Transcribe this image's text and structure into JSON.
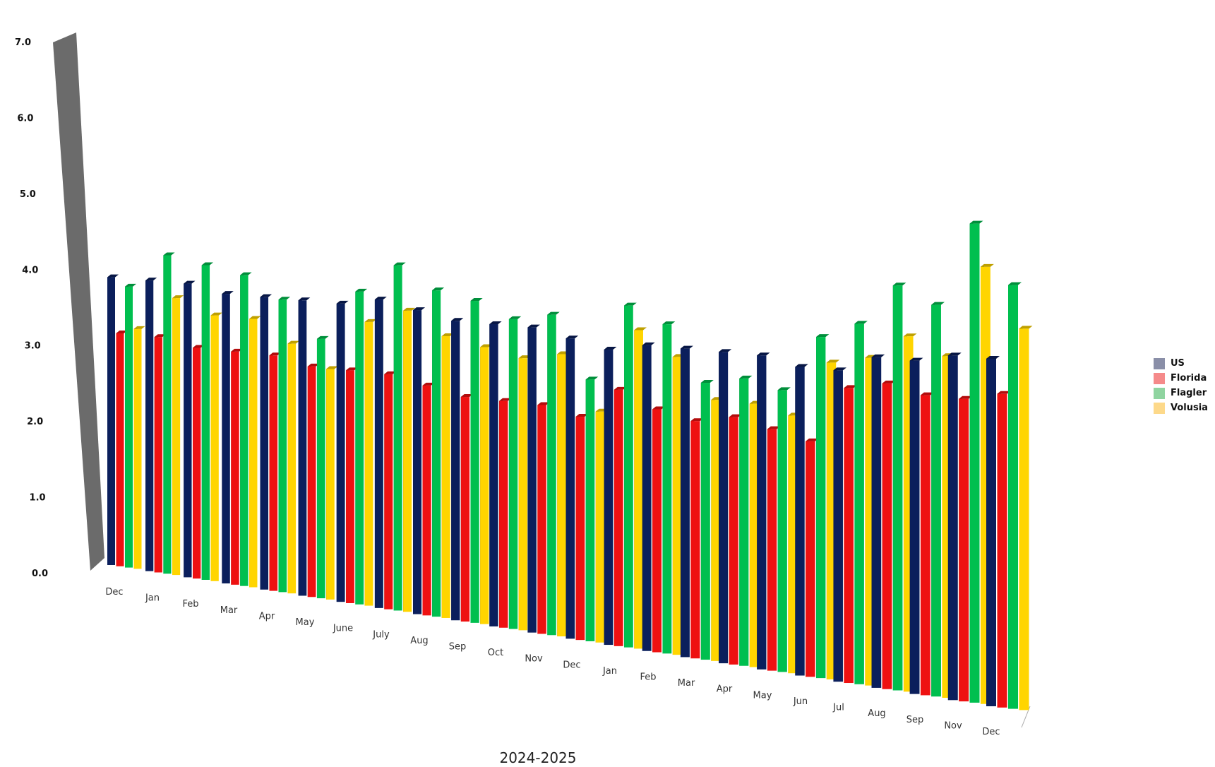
{
  "chart_data": {
    "type": "bar",
    "style": "3d-perspective",
    "xlabel": "2024-2025",
    "ylabel": "",
    "ylim": [
      0,
      7
    ],
    "yticks": [
      "0.0",
      "1.0",
      "2.0",
      "3.0",
      "4.0",
      "5.0",
      "6.0",
      "7.0"
    ],
    "legend_position": "right",
    "categories": [
      "Dec",
      "Jan",
      "Feb",
      "Mar",
      "Apr",
      "May",
      "June",
      "July",
      "Aug",
      "Sep",
      "Oct",
      "Nov",
      "Dec",
      "Jan",
      "Feb",
      "Mar",
      "Apr",
      "May",
      "Jun",
      "Jul",
      "Aug",
      "Sep",
      "Nov",
      "Dec"
    ],
    "series": [
      {
        "name": "US",
        "color": "#0b1f5c",
        "legend_color": "#8a8fa8",
        "values": [
          4.2,
          4.2,
          4.2,
          4.1,
          4.1,
          4.1,
          4.1,
          4.2,
          4.1,
          4.0,
          4.0,
          4.0,
          3.9,
          3.8,
          3.9,
          3.9,
          3.9,
          3.9,
          3.8,
          3.8,
          4.0,
          4.0,
          4.1,
          4.1
        ]
      },
      {
        "name": "Florida",
        "color": "#ee1111",
        "legend_color": "#f58a8a",
        "values": [
          3.4,
          3.4,
          3.3,
          3.3,
          3.3,
          3.2,
          3.2,
          3.2,
          3.1,
          3.0,
          3.0,
          3.0,
          2.9,
          3.3,
          3.1,
          3.0,
          3.1,
          3.0,
          2.9,
          3.6,
          3.7,
          3.6,
          3.6,
          3.7
        ]
      },
      {
        "name": "Flagler",
        "color": "#00bf4f",
        "legend_color": "#8fd4a0",
        "values": [
          4.1,
          4.6,
          4.5,
          4.4,
          4.1,
          3.6,
          4.3,
          4.7,
          4.4,
          4.3,
          4.1,
          4.2,
          3.4,
          4.4,
          4.2,
          3.5,
          3.6,
          3.5,
          4.2,
          4.4,
          4.9,
          4.7,
          5.7,
          5.0
        ]
      },
      {
        "name": "Volusia",
        "color": "#ffd500",
        "legend_color": "#fdd98a",
        "values": [
          3.5,
          4.0,
          3.8,
          3.8,
          3.5,
          3.2,
          3.9,
          4.1,
          3.8,
          3.7,
          3.6,
          3.7,
          3.0,
          4.1,
          3.8,
          3.3,
          3.3,
          3.2,
          3.9,
          4.0,
          4.3,
          4.1,
          5.2,
          4.5
        ]
      }
    ]
  }
}
